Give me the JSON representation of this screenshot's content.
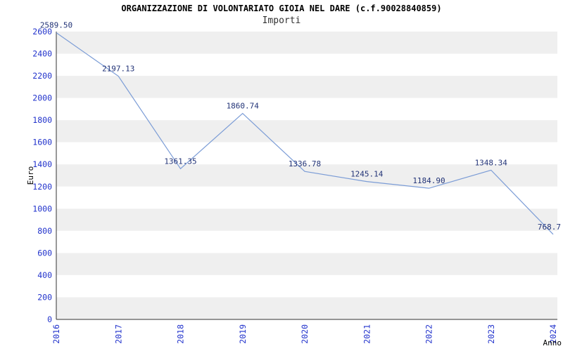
{
  "chart": {
    "title": "ORGANIZZAZIONE DI VOLONTARIATO GIOIA NEL DARE (c.f.90028840859)",
    "subtitle": "Importi",
    "xlabel": "Anno",
    "ylabel": "Euro"
  },
  "chart_data": {
    "type": "line",
    "x": [
      "2016",
      "2017",
      "2018",
      "2019",
      "2020",
      "2021",
      "2022",
      "2023",
      "2024"
    ],
    "series": [
      {
        "name": "Importi",
        "values": [
          2589.5,
          2197.13,
          1361.35,
          1860.74,
          1336.78,
          1245.14,
          1184.9,
          1348.34,
          768.7
        ]
      }
    ],
    "point_labels": [
      "2589.50",
      "2197.13",
      "1361.35",
      "1860.74",
      "1336.78",
      "1245.14",
      "1184.90",
      "1348.34",
      "768.7"
    ],
    "ylim": [
      0,
      2600
    ],
    "ytick_step": 200,
    "grid": "alternating-horizontal-bands",
    "legend": "none",
    "colors": {
      "line": "#7b9cd6",
      "tick_label": "#2233cc",
      "point_label": "#223377",
      "band": "#efefef",
      "axis": "#333333"
    }
  }
}
